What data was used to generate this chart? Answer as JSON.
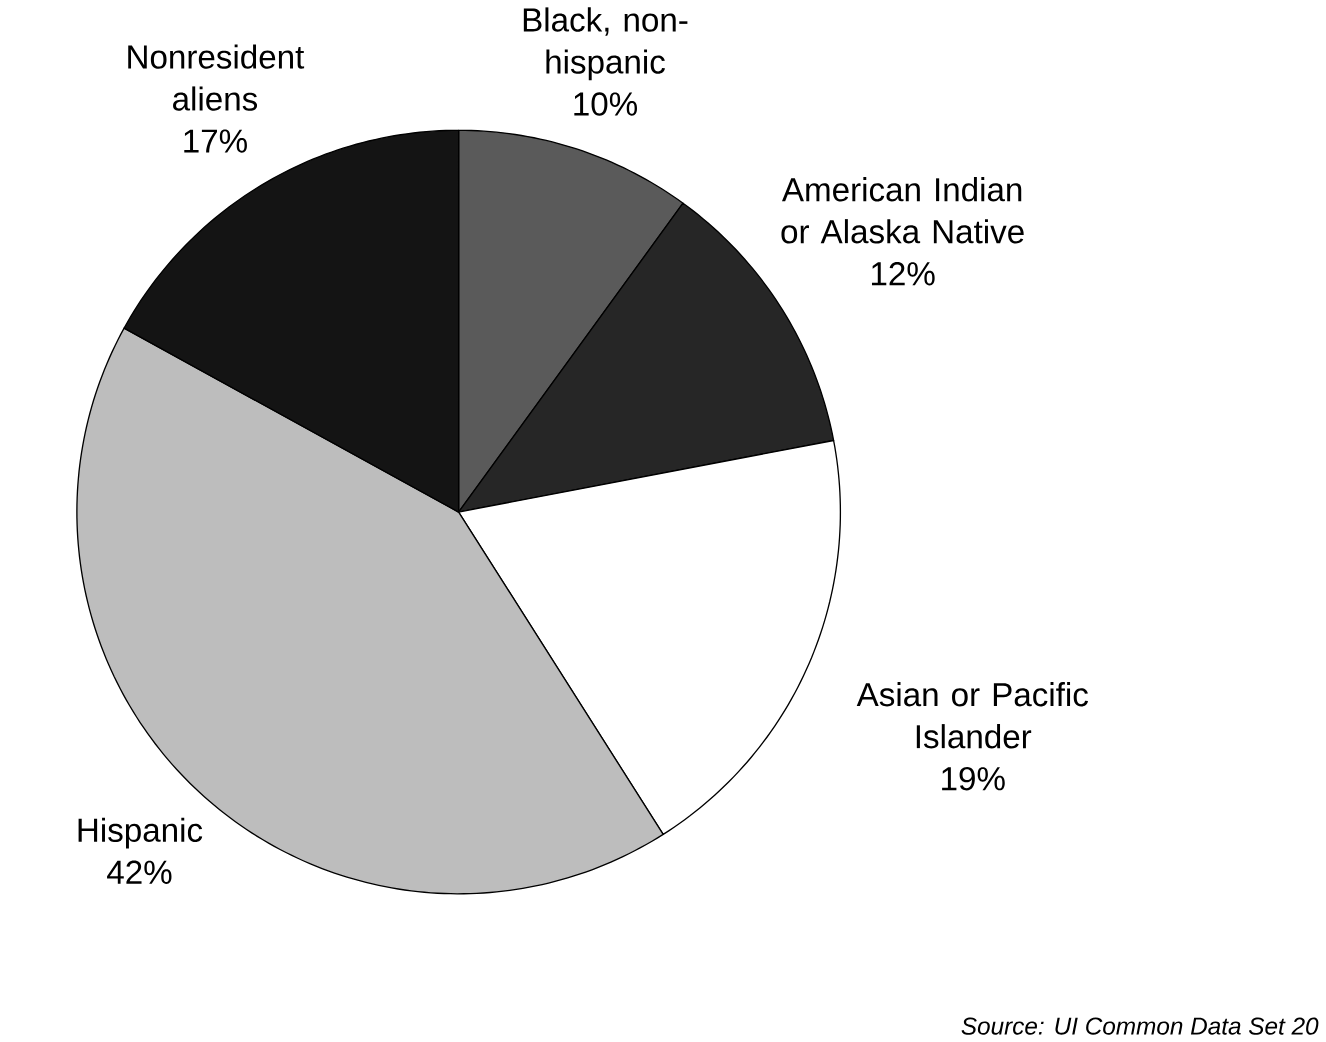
{
  "chart_data": {
    "type": "pie",
    "categories": [
      "Black, non-hispanic",
      "American Indian or Alaska Native",
      "Asian or Pacific Islander",
      "Hispanic",
      "Nonresident aliens"
    ],
    "values": [
      10,
      12,
      19,
      42,
      17
    ],
    "value_labels": [
      "10%",
      "12%",
      "19%",
      "42%",
      "17%"
    ],
    "colors": [
      "#5a5a5a",
      "#262626",
      "#ffffff",
      "#bdbdbd",
      "#141414"
    ],
    "annotations": [
      "Source: UI Common Data Set 20"
    ]
  }
}
